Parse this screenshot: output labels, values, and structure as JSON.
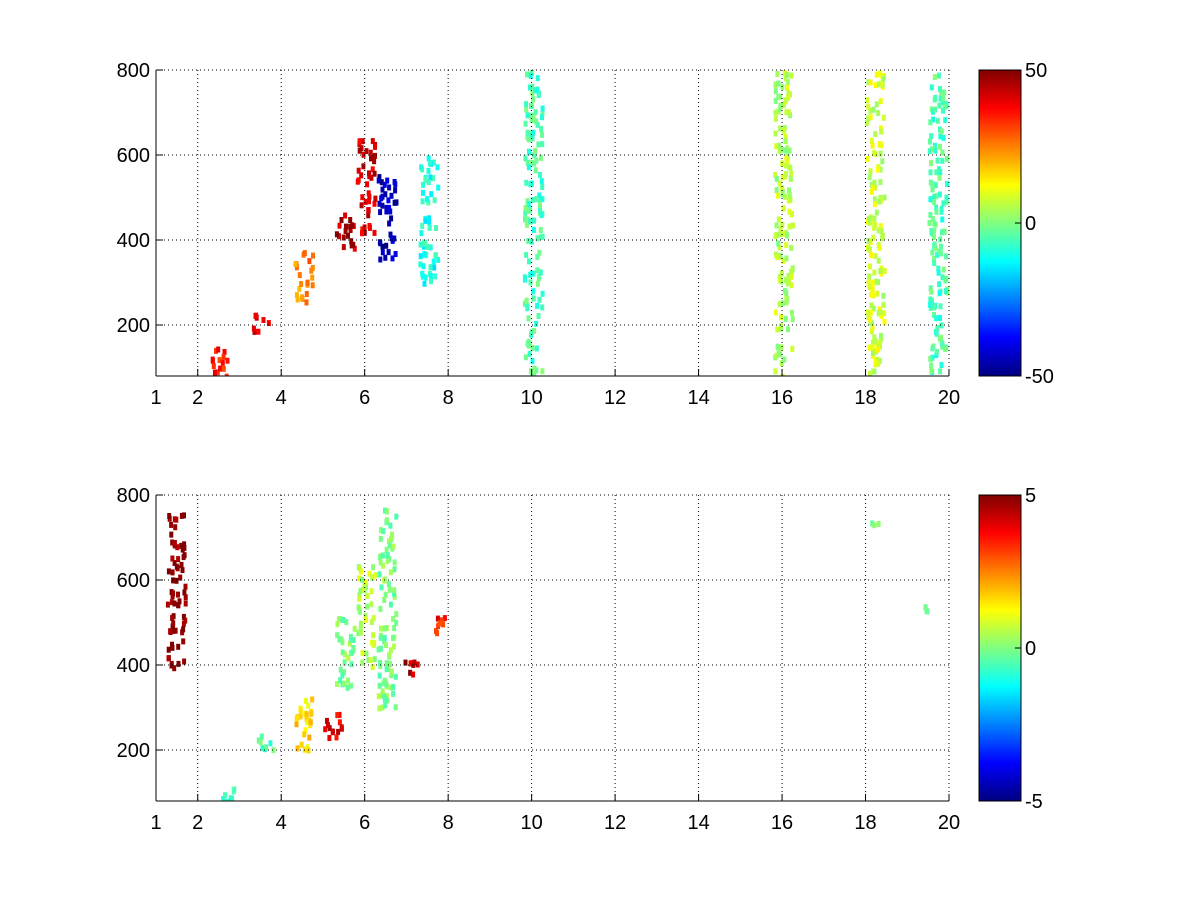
{
  "chart_data": [
    {
      "type": "heatmap",
      "title": "",
      "xlabel": "",
      "ylabel": "",
      "xlim": [
        1,
        20
      ],
      "ylim": [
        80,
        800
      ],
      "x_ticks": [
        1,
        2,
        4,
        6,
        8,
        10,
        12,
        14,
        16,
        18,
        20
      ],
      "y_ticks": [
        200,
        400,
        600,
        800
      ],
      "grid": true,
      "colormap": "jet",
      "colorbar": {
        "min": -50,
        "max": 50,
        "ticks": [
          -50,
          0,
          50
        ]
      },
      "features": [
        {
          "x": 2.5,
          "y_min": 80,
          "y_max": 160,
          "value": 35
        },
        {
          "x": 3.5,
          "y_min": 190,
          "y_max": 230,
          "value": 38
        },
        {
          "x": 4.5,
          "y_min": 260,
          "y_max": 380,
          "value": 25
        },
        {
          "x": 5.5,
          "y_min": 380,
          "y_max": 480,
          "value": 45
        },
        {
          "x": 6.0,
          "y_min": 420,
          "y_max": 640,
          "value": 42
        },
        {
          "x": 6.5,
          "y_min": 350,
          "y_max": 560,
          "value": -45
        },
        {
          "x": 7.5,
          "y_min": 300,
          "y_max": 600,
          "value": -10
        },
        {
          "x": 10.0,
          "y_min": 80,
          "y_max": 800,
          "value": -5
        },
        {
          "x": 16.0,
          "y_min": 80,
          "y_max": 800,
          "value": 5
        },
        {
          "x": 18.2,
          "y_min": 80,
          "y_max": 800,
          "value": 8
        },
        {
          "x": 19.7,
          "y_min": 80,
          "y_max": 800,
          "value": -5
        }
      ]
    },
    {
      "type": "heatmap",
      "title": "",
      "xlabel": "",
      "ylabel": "",
      "xlim": [
        1,
        20
      ],
      "ylim": [
        80,
        800
      ],
      "x_ticks": [
        1,
        2,
        4,
        6,
        8,
        10,
        12,
        14,
        16,
        18,
        20
      ],
      "y_ticks": [
        200,
        400,
        600,
        800
      ],
      "grid": true,
      "colormap": "jet",
      "colorbar": {
        "min": -5,
        "max": 5,
        "ticks": [
          -5,
          0,
          5
        ]
      },
      "features": [
        {
          "x": 1.45,
          "y_min": 380,
          "y_max": 760,
          "value": 5
        },
        {
          "x": 2.7,
          "y_min": 80,
          "y_max": 120,
          "value": -0.5
        },
        {
          "x": 3.6,
          "y_min": 200,
          "y_max": 240,
          "value": -0.5
        },
        {
          "x": 4.5,
          "y_min": 200,
          "y_max": 340,
          "value": 1.5
        },
        {
          "x": 5.2,
          "y_min": 230,
          "y_max": 300,
          "value": 4
        },
        {
          "x": 5.5,
          "y_min": 340,
          "y_max": 520,
          "value": 0
        },
        {
          "x": 6.0,
          "y_min": 400,
          "y_max": 640,
          "value": 0.5
        },
        {
          "x": 6.5,
          "y_min": 300,
          "y_max": 780,
          "value": 0
        },
        {
          "x": 7.1,
          "y_min": 380,
          "y_max": 420,
          "value": 4.5
        },
        {
          "x": 7.8,
          "y_min": 480,
          "y_max": 520,
          "value": 3.5
        },
        {
          "x": 18.2,
          "y_min": 740,
          "y_max": 750,
          "value": 0
        },
        {
          "x": 19.6,
          "y_min": 530,
          "y_max": 545,
          "value": 0
        }
      ]
    }
  ]
}
